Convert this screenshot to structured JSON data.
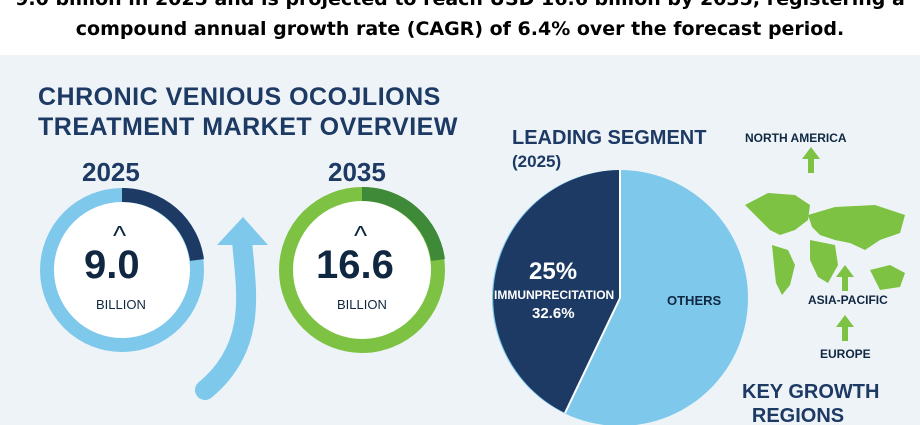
{
  "header": {
    "line1": "9.0 billion in 2025 and is projected to reach USD 16.6 billion by 2035, registering a",
    "line2": "compound annual growth rate (CAGR) of 6.4% over the forecast period."
  },
  "infographic": {
    "title_line1": "CHRONIC VENIOUS OCOJLIONS",
    "title_line2": "TREATMENT MARKET OVERVIEW",
    "left_ring": {
      "year": "2025",
      "value": "9.0",
      "unit": "BILLION",
      "caret": "^"
    },
    "right_ring": {
      "year": "2035",
      "value": "16.6",
      "unit": "BILLION",
      "caret": "^"
    },
    "segment": {
      "title_line1": "LEADING SEGMENT",
      "title_line2": "(2025)",
      "pct": "25%",
      "name": "IMMUNPRECITATION",
      "share": "32.6%",
      "others": "OTHERS"
    },
    "regions": {
      "north_america": "NORTH AMERICA",
      "asia_pacific": "ASIA-PACIFIC",
      "europe": "EUROPE",
      "key_line1": "KEY GROWTH",
      "key_line2": "REGIONS"
    },
    "colors": {
      "navy": "#1d3a64",
      "light_blue": "#7ec8ec",
      "green": "#7dc242",
      "dark_green": "#3f8a38"
    }
  }
}
